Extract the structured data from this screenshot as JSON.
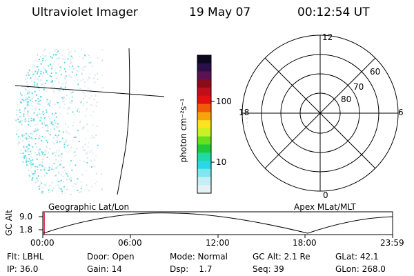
{
  "header": {
    "instrument": "Ultraviolet Imager",
    "date": "19 May 07",
    "time": "00:12:54 UT"
  },
  "colorbar": {
    "label": "photon cm⁻²s⁻¹",
    "ticks": [
      "100",
      "10"
    ],
    "colors": [
      "#0d0820",
      "#2a0f4a",
      "#5a1255",
      "#8a0c1a",
      "#c10f1a",
      "#e21111",
      "#f25a0a",
      "#f9a20b",
      "#fde221",
      "#c9f125",
      "#66e01e",
      "#21c93a",
      "#20d9a5",
      "#2ad7e6",
      "#7fe5f1",
      "#c7eef3",
      "#e3f2f4"
    ]
  },
  "polar": {
    "lat_labels": [
      "80",
      "70",
      "60"
    ],
    "mlt_labels": {
      "top": "12",
      "left": "18",
      "right": "6",
      "bottom": "0"
    }
  },
  "orbit": {
    "left_title": "Geographic Lat/Lon",
    "right_title": "Apex MLat/MLT",
    "ylabel": "GC Alt",
    "ymax": "9.0",
    "ymin": "1.8",
    "time_ticks": [
      "00:00",
      "06:00",
      "12:00",
      "18:00",
      "23:59"
    ]
  },
  "info": {
    "flt": "Flt: LBHL",
    "door": "Door: Open",
    "mode": "Mode: Normal",
    "gcalt": "GC Alt: 2.1 Re",
    "glat": "GLat: 42.1",
    "ip": "IP: 36.0",
    "gain": "Gain: 14",
    "dsp": "Dsp:    1.7",
    "seq": "Seq: 39",
    "glon": "GLon: 268.0"
  }
}
